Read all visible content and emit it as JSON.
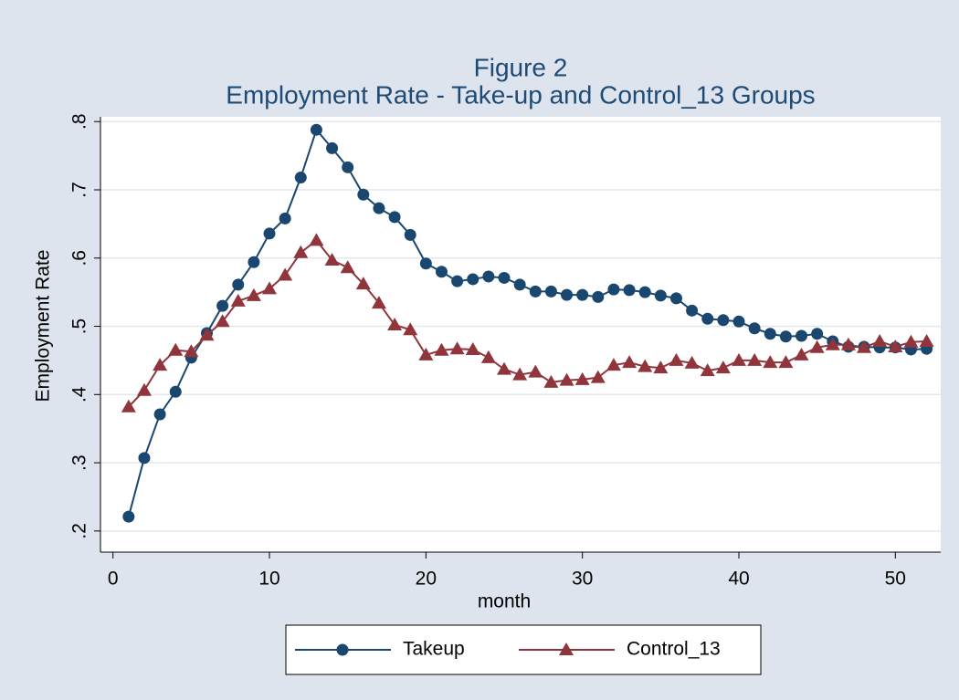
{
  "chart_data": {
    "type": "line",
    "title": "Figure 2",
    "subtitle": "Employment Rate - Take-up and Control_13 Groups",
    "x_label": "month",
    "y_label": "Employment Rate",
    "x": [
      1,
      2,
      3,
      4,
      5,
      6,
      7,
      8,
      9,
      10,
      11,
      12,
      13,
      14,
      15,
      16,
      17,
      18,
      19,
      20,
      21,
      22,
      23,
      24,
      25,
      26,
      27,
      28,
      29,
      30,
      31,
      32,
      33,
      34,
      35,
      36,
      37,
      38,
      39,
      40,
      41,
      42,
      43,
      44,
      45,
      46,
      47,
      48,
      49,
      50,
      51,
      52
    ],
    "series": [
      {
        "name": "Takeup",
        "color": "#1a476f",
        "marker": "circle",
        "values": [
          0.221,
          0.307,
          0.371,
          0.404,
          0.454,
          0.49,
          0.53,
          0.561,
          0.594,
          0.636,
          0.658,
          0.718,
          0.788,
          0.761,
          0.733,
          0.693,
          0.673,
          0.66,
          0.634,
          0.592,
          0.58,
          0.566,
          0.569,
          0.573,
          0.571,
          0.561,
          0.551,
          0.551,
          0.546,
          0.546,
          0.543,
          0.554,
          0.553,
          0.55,
          0.545,
          0.541,
          0.523,
          0.511,
          0.509,
          0.507,
          0.497,
          0.489,
          0.485,
          0.486,
          0.489,
          0.478,
          0.47,
          0.47,
          0.469,
          0.469,
          0.466,
          0.467
        ]
      },
      {
        "name": "Control_13",
        "color": "#90353b",
        "marker": "triangle",
        "values": [
          0.382,
          0.406,
          0.443,
          0.465,
          0.463,
          0.487,
          0.507,
          0.537,
          0.545,
          0.555,
          0.575,
          0.608,
          0.626,
          0.597,
          0.586,
          0.562,
          0.534,
          0.502,
          0.495,
          0.458,
          0.465,
          0.467,
          0.466,
          0.454,
          0.437,
          0.429,
          0.433,
          0.418,
          0.421,
          0.422,
          0.425,
          0.443,
          0.447,
          0.441,
          0.439,
          0.45,
          0.446,
          0.435,
          0.439,
          0.45,
          0.45,
          0.447,
          0.447,
          0.458,
          0.469,
          0.473,
          0.473,
          0.469,
          0.478,
          0.47,
          0.477,
          0.478
        ]
      }
    ],
    "xlim": [
      -0.8,
      52.9
    ],
    "xticks": [
      0,
      10,
      20,
      30,
      40,
      50
    ],
    "ylim": [
      0.169,
      0.807
    ],
    "yticks": [
      {
        "value": 0.2,
        "label": ".2"
      },
      {
        "value": 0.3,
        "label": ".3"
      },
      {
        "value": 0.4,
        "label": ".4"
      },
      {
        "value": 0.5,
        "label": ".5"
      },
      {
        "value": 0.6,
        "label": ".6"
      },
      {
        "value": 0.7,
        "label": ".7"
      },
      {
        "value": 0.8,
        "label": ".8"
      }
    ],
    "grid": true,
    "legend": "bottom"
  }
}
